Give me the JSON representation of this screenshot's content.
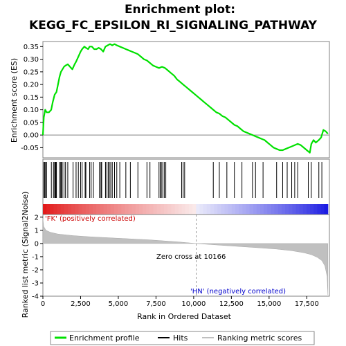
{
  "chart_data": {
    "type": "line",
    "title_line1": "Enrichment plot:",
    "title_line2": "KEGG_FC_EPSILON_RI_SIGNALING_PATHWAY",
    "es_panel": {
      "ylabel": "Enrichment score (ES)",
      "ylim": [
        -0.09,
        0.37
      ],
      "yticks": [
        "0.35",
        "0.30",
        "0.25",
        "0.20",
        "0.15",
        "0.10",
        "0.05",
        "0.00",
        "-0.05"
      ],
      "ytick_values": [
        0.35,
        0.3,
        0.25,
        0.2,
        0.15,
        0.1,
        0.05,
        0.0,
        -0.05
      ],
      "series_name": "Enrichment profile",
      "color": "#00e000",
      "x": [
        0,
        60,
        150,
        250,
        400,
        550,
        650,
        780,
        900,
        1000,
        1100,
        1200,
        1300,
        1400,
        1500,
        1650,
        1800,
        1950,
        2100,
        2200,
        2350,
        2500,
        2600,
        2750,
        2850,
        3000,
        3100,
        3250,
        3400,
        3550,
        3700,
        3850,
        4000,
        4150,
        4300,
        4450,
        4600,
        4750,
        4900,
        5100,
        5300,
        5500,
        5700,
        5900,
        6100,
        6300,
        6500,
        6700,
        6900,
        7100,
        7300,
        7500,
        7700,
        7900,
        8100,
        8300,
        8500,
        8700,
        8900,
        9100,
        9300,
        9500,
        9700,
        9900,
        10100,
        10300,
        10500,
        10700,
        10900,
        11100,
        11300,
        11500,
        11700,
        11900,
        12100,
        12300,
        12500,
        12700,
        12900,
        13100,
        13300,
        13500,
        13700,
        13900,
        14100,
        14300,
        14500,
        14700,
        14900,
        15100,
        15300,
        15500,
        15700,
        15900,
        16100,
        16300,
        16500,
        16700,
        16900,
        17100,
        17300,
        17500,
        17700,
        17800,
        17950,
        18100,
        18300,
        18450,
        18600,
        18750,
        18900
      ],
      "y": [
        0.0,
        0.07,
        0.1,
        0.09,
        0.09,
        0.1,
        0.13,
        0.16,
        0.17,
        0.2,
        0.23,
        0.25,
        0.26,
        0.27,
        0.275,
        0.28,
        0.27,
        0.26,
        0.28,
        0.29,
        0.31,
        0.33,
        0.34,
        0.35,
        0.345,
        0.34,
        0.35,
        0.35,
        0.34,
        0.34,
        0.345,
        0.34,
        0.33,
        0.35,
        0.355,
        0.36,
        0.355,
        0.36,
        0.355,
        0.35,
        0.345,
        0.34,
        0.335,
        0.33,
        0.325,
        0.32,
        0.31,
        0.3,
        0.295,
        0.285,
        0.275,
        0.27,
        0.265,
        0.27,
        0.265,
        0.255,
        0.245,
        0.235,
        0.22,
        0.21,
        0.2,
        0.19,
        0.18,
        0.17,
        0.16,
        0.15,
        0.14,
        0.13,
        0.12,
        0.11,
        0.1,
        0.09,
        0.085,
        0.075,
        0.07,
        0.06,
        0.05,
        0.04,
        0.035,
        0.025,
        0.015,
        0.01,
        0.005,
        0.0,
        -0.005,
        -0.01,
        -0.015,
        -0.02,
        -0.03,
        -0.04,
        -0.05,
        -0.055,
        -0.06,
        -0.06,
        -0.055,
        -0.05,
        -0.045,
        -0.04,
        -0.035,
        -0.04,
        -0.05,
        -0.06,
        -0.07,
        -0.035,
        -0.02,
        -0.03,
        -0.02,
        -0.01,
        0.02,
        0.015,
        0.005
      ]
    },
    "hits_panel": {
      "hit_positions": [
        60,
        120,
        180,
        240,
        560,
        700,
        780,
        820,
        860,
        900,
        1100,
        1180,
        1230,
        1280,
        1400,
        1500,
        1650,
        2000,
        2200,
        2350,
        2500,
        2600,
        2800,
        2850,
        3100,
        3200,
        3350,
        3750,
        3850,
        3900,
        4150,
        4250,
        4350,
        4400,
        4500,
        4600,
        4750,
        4900,
        5100,
        5500,
        5800,
        6300,
        6900,
        7100,
        7700,
        7800,
        7850,
        7950,
        8050,
        8150,
        9200,
        9300,
        9400,
        11300,
        11700,
        12200,
        12700,
        13200,
        13900,
        14100,
        14600,
        15500,
        15900,
        16200,
        16500,
        16700,
        16900,
        17600,
        17800,
        18300,
        18500
      ]
    },
    "metric_panel": {
      "ylabel": "Ranked list metric (Signal2Noise)",
      "ylim": [
        -4,
        2.2
      ],
      "yticks": [
        "2",
        "1",
        "0",
        "-1",
        "-2",
        "-3",
        "-4"
      ],
      "ytick_values": [
        2,
        1,
        0,
        -1,
        -2,
        -3,
        -4
      ],
      "xlabel": "Rank in Ordered Dataset",
      "xticks": [
        "0",
        "2,500",
        "5,000",
        "7,500",
        "10,000",
        "12,500",
        "15,000",
        "17,500"
      ],
      "xtick_values": [
        0,
        2500,
        5000,
        7500,
        10000,
        12500,
        15000,
        17500
      ],
      "xlim": [
        0,
        19000
      ],
      "n_genes": 18900,
      "zero_cross": 10166,
      "zero_cross_label": "Zero cross at 10166",
      "pos_label": "'FK' (positively correlated)",
      "neg_label": "'HN' (negatively correlated)",
      "metric_x": [
        0,
        50,
        200,
        500,
        1000,
        2000,
        3000,
        5000,
        7000,
        9000,
        10166,
        12000,
        14000,
        15500,
        16500,
        17300,
        17800,
        18200,
        18500,
        18700,
        18850,
        18900
      ],
      "metric_y": [
        1.9,
        1.3,
        1.0,
        0.85,
        0.72,
        0.6,
        0.52,
        0.4,
        0.28,
        0.12,
        0.0,
        -0.15,
        -0.3,
        -0.42,
        -0.55,
        -0.7,
        -0.85,
        -1.05,
        -1.3,
        -1.7,
        -2.5,
        -3.9
      ]
    },
    "legend": {
      "entries": [
        "Enrichment profile",
        "Hits",
        "Ranking metric scores"
      ],
      "colors": [
        "#00e000",
        "#000000",
        "#c0c0c0"
      ]
    }
  }
}
